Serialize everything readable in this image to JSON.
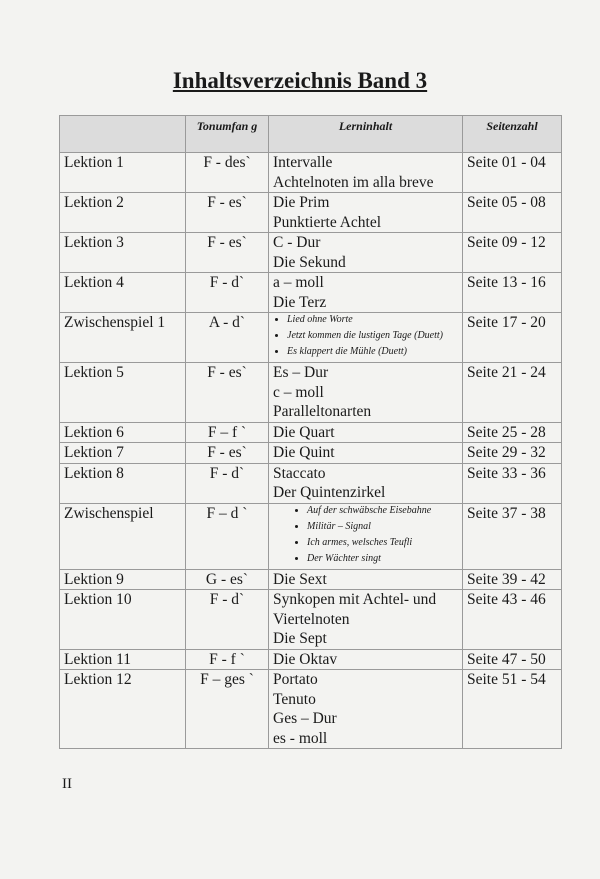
{
  "title": "Inhaltsverzeichnis Band 3",
  "headers": [
    "",
    "Tonumfan g",
    "Lerninhalt",
    "Seitenzahl"
  ],
  "rows": [
    {
      "lesson": "Lektion 1",
      "range": "F - des`",
      "content": [
        "Intervalle",
        "Achtelnoten im alla breve"
      ],
      "pages": "Seite 01 - 04"
    },
    {
      "lesson": "Lektion 2",
      "range": "F - es`",
      "content": [
        "Die Prim",
        "Punktierte Achtel"
      ],
      "pages": "Seite 05 - 08"
    },
    {
      "lesson": "Lektion 3",
      "range": "F - es`",
      "content": [
        "C - Dur",
        "Die Sekund"
      ],
      "pages": "Seite 09 - 12"
    },
    {
      "lesson": "Lektion 4",
      "range": "F - d`",
      "content": [
        "a – moll",
        "Die Terz"
      ],
      "pages": "Seite 13 - 16"
    },
    {
      "lesson": "Zwischenspiel 1",
      "range": "A - d`",
      "bullets": [
        "Lied ohne Worte",
        "Jetzt kommen die lustigen Tage (Duett)",
        "Es klappert die Mühle (Duett)"
      ],
      "pages": "Seite 17 - 20"
    },
    {
      "lesson": "Lektion 5",
      "range": "F - es`",
      "content": [
        "Es – Dur",
        "c – moll",
        "Paralleltonarten"
      ],
      "pages": "Seite 21 - 24"
    },
    {
      "lesson": "Lektion 6",
      "range": "F – f `",
      "content": [
        "Die Quart"
      ],
      "pages": "Seite 25 - 28"
    },
    {
      "lesson": "Lektion 7",
      "range": "F - es`",
      "content": [
        "Die Quint"
      ],
      "pages": "Seite 29 - 32"
    },
    {
      "lesson": "Lektion 8",
      "range": "F - d`",
      "content": [
        "Staccato",
        "Der Quintenzirkel"
      ],
      "pages": "Seite 33 - 36"
    },
    {
      "lesson": "Zwischenspiel",
      "range": "F – d `",
      "bullets": [
        "Auf der schwäbsche Eisebahne",
        "Militär – Signal",
        "Ich armes,  welsches Teufli",
        "Der Wächter singt"
      ],
      "pages": "Seite 37 - 38"
    },
    {
      "lesson": "Lektion 9",
      "range": "G - es`",
      "content": [
        "Die Sext"
      ],
      "pages": "Seite 39 - 42"
    },
    {
      "lesson": "Lektion 10",
      "range": "F - d`",
      "content": [
        "Synkopen mit Achtel- und Viertelnoten",
        "Die Sept"
      ],
      "pages": "Seite 43 - 46"
    },
    {
      "lesson": "Lektion 11",
      "range": "F - f `",
      "content": [
        "Die Oktav"
      ],
      "pages": "Seite 47 - 50"
    },
    {
      "lesson": "Lektion 12",
      "range": "F – ges `",
      "content": [
        "Portato",
        "Tenuto",
        "Ges – Dur",
        "es - moll"
      ],
      "pages": "Seite 51 - 54"
    }
  ],
  "page_number": "II"
}
